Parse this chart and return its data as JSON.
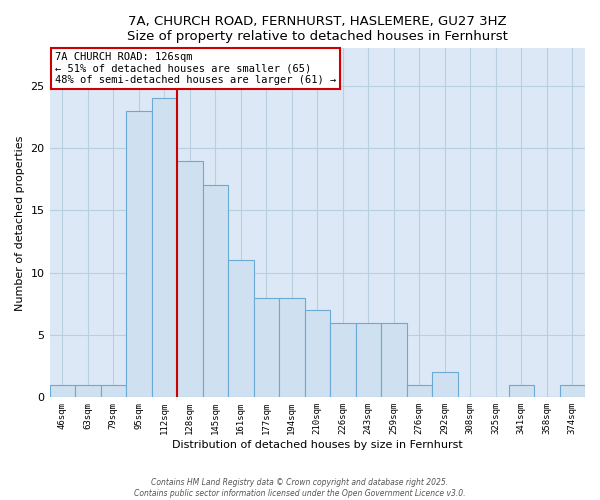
{
  "title": "7A, CHURCH ROAD, FERNHURST, HASLEMERE, GU27 3HZ",
  "subtitle": "Size of property relative to detached houses in Fernhurst",
  "xlabel": "Distribution of detached houses by size in Fernhurst",
  "ylabel": "Number of detached properties",
  "bin_labels": [
    "46sqm",
    "63sqm",
    "79sqm",
    "95sqm",
    "112sqm",
    "128sqm",
    "145sqm",
    "161sqm",
    "177sqm",
    "194sqm",
    "210sqm",
    "226sqm",
    "243sqm",
    "259sqm",
    "276sqm",
    "292sqm",
    "308sqm",
    "325sqm",
    "341sqm",
    "358sqm",
    "374sqm"
  ],
  "bar_heights": [
    1,
    1,
    1,
    23,
    24,
    19,
    17,
    11,
    8,
    8,
    7,
    6,
    6,
    6,
    1,
    2,
    0,
    0,
    1,
    0,
    1
  ],
  "bar_color": "#cfe0f0",
  "bar_edge_color": "#6aaad4",
  "ylim": [
    0,
    28
  ],
  "yticks": [
    0,
    5,
    10,
    15,
    20,
    25
  ],
  "red_line_bin_index": 5,
  "red_line_color": "#cc0000",
  "annotation_text": "7A CHURCH ROAD: 126sqm\n← 51% of detached houses are smaller (65)\n48% of semi-detached houses are larger (61) →",
  "annotation_box_color": "#ffffff",
  "annotation_box_edge": "#cc0000",
  "footer_line1": "Contains HM Land Registry data © Crown copyright and database right 2025.",
  "footer_line2": "Contains public sector information licensed under the Open Government Licence v3.0.",
  "fig_background": "#ffffff",
  "plot_background": "#dce8f5",
  "grid_color": "#b8cfe0"
}
